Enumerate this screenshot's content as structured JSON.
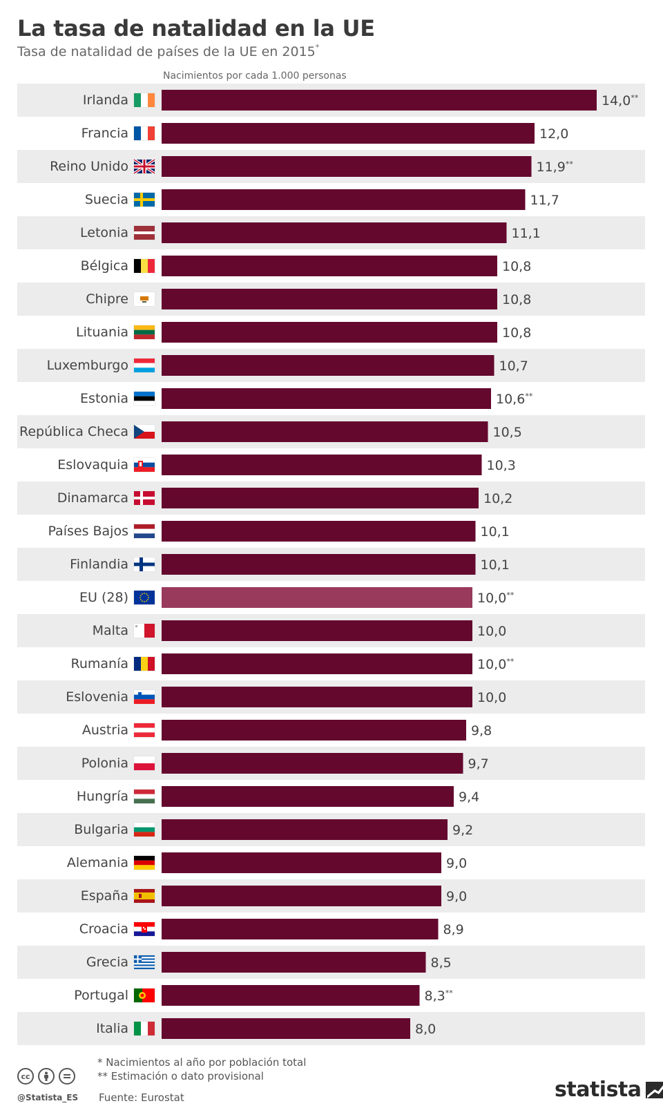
{
  "title": "La tasa de natalidad en la UE",
  "subtitle": "Tasa de natalidad de países de la UE en 2015",
  "subtitle_mark": "*",
  "axis_note": "Nacimientos por cada 1.000 personas",
  "colors": {
    "bar": "#64082e",
    "bar_highlight": "#993a5c",
    "row_stripe": "#ececec"
  },
  "chart_data": {
    "type": "bar",
    "orientation": "horizontal",
    "xlim": [
      0,
      14.0
    ],
    "grid": false,
    "categories": [
      "Irlanda",
      "Francia",
      "Reino Unido",
      "Suecia",
      "Letonia",
      "Bélgica",
      "Chipre",
      "Lituania",
      "Luxemburgo",
      "Estonia",
      "República Checa",
      "Eslovaquia",
      "Dinamarca",
      "Países Bajos",
      "Finlandia",
      "EU (28)",
      "Malta",
      "Rumanía",
      "Eslovenia",
      "Austria",
      "Polonia",
      "Hungría",
      "Bulgaria",
      "Alemania",
      "España",
      "Croacia",
      "Grecia",
      "Portugal",
      "Italia"
    ],
    "values": [
      14.0,
      12.0,
      11.9,
      11.7,
      11.1,
      10.8,
      10.8,
      10.8,
      10.7,
      10.6,
      10.5,
      10.3,
      10.2,
      10.1,
      10.1,
      10.0,
      10.0,
      10.0,
      10.0,
      9.8,
      9.7,
      9.4,
      9.2,
      9.0,
      9.0,
      8.9,
      8.5,
      8.3,
      8.0
    ],
    "labels": [
      "14,0",
      "12,0",
      "11,9",
      "11,7",
      "11,1",
      "10,8",
      "10,8",
      "10,8",
      "10,7",
      "10,6",
      "10,5",
      "10,3",
      "10,2",
      "10,1",
      "10,1",
      "10,0",
      "10,0",
      "10,0",
      "10,0",
      "9,8",
      "9,7",
      "9,4",
      "9,2",
      "9,0",
      "9,0",
      "8,9",
      "8,5",
      "8,3",
      "8,0"
    ],
    "marks": [
      "**",
      "",
      "**",
      "",
      "",
      "",
      "",
      "",
      "",
      "**",
      "",
      "",
      "",
      "",
      "",
      "**",
      "",
      "**",
      "",
      "",
      "",
      "",
      "",
      "",
      "",
      "",
      "",
      "**",
      ""
    ],
    "highlight": "EU (28)",
    "flags": [
      "ireland-flag",
      "france-flag",
      "uk-flag",
      "sweden-flag",
      "latvia-flag",
      "belgium-flag",
      "cyprus-flag",
      "lithuania-flag",
      "luxembourg-flag",
      "estonia-flag",
      "czech-flag",
      "slovakia-flag",
      "denmark-flag",
      "netherlands-flag",
      "finland-flag",
      "eu-flag",
      "malta-flag",
      "romania-flag",
      "slovenia-flag",
      "austria-flag",
      "poland-flag",
      "hungary-flag",
      "bulgaria-flag",
      "germany-flag",
      "spain-flag",
      "croatia-flag",
      "greece-flag",
      "portugal-flag",
      "italy-flag"
    ]
  },
  "footnotes": {
    "note1": "*   Nacimientos al año por población total",
    "note2": "** Estimación o dato provisional",
    "source": "Fuente: Eurostat"
  },
  "credits": {
    "handle": "@Statista_ES",
    "brand": "statista",
    "cc_icons": [
      "cc-icon",
      "by-icon",
      "nd-icon"
    ]
  }
}
